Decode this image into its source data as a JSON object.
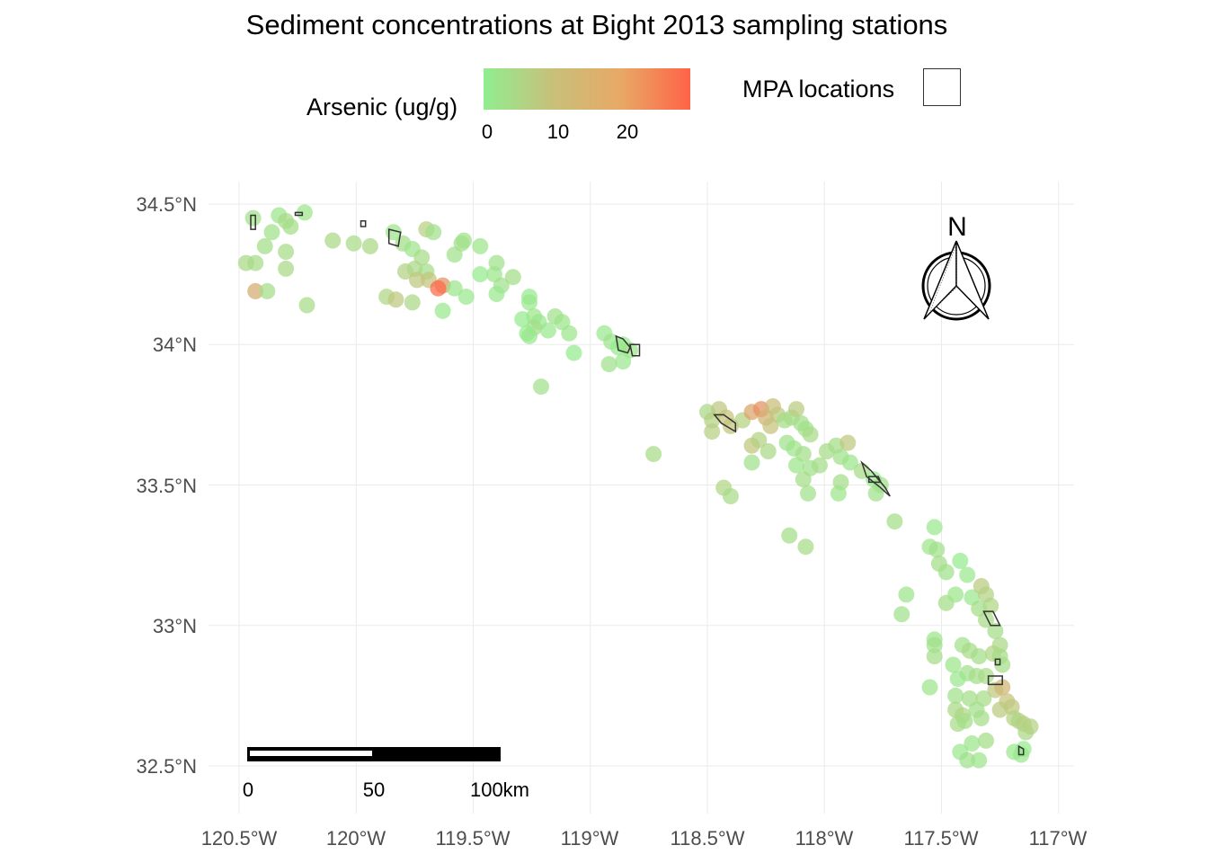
{
  "title": "Sediment concentrations at Bight 2013 sampling stations",
  "legend": {
    "arsenic_label": "Arsenic (ug/g)",
    "colorbar_ticks": [
      "0",
      "10",
      "20"
    ],
    "colorbar_min": 0,
    "colorbar_max": 29,
    "colors": [
      "#90ee90",
      "#ff6347"
    ],
    "mpa_label": "MPA locations"
  },
  "axes": {
    "x_ticks": [
      "120.5°W",
      "120°W",
      "119.5°W",
      "119°W",
      "118.5°W",
      "118°W",
      "117.5°W",
      "117°W"
    ],
    "y_ticks": [
      "34.5°N",
      "34°N",
      "33.5°N",
      "33°N",
      "32.5°N"
    ]
  },
  "north_arrow": {
    "label": "N"
  },
  "scale_bar": {
    "labels": [
      "0",
      "50",
      "100km"
    ]
  },
  "chart_data": {
    "type": "scatter",
    "title": "Sediment concentrations at Bight 2013 sampling stations",
    "xlim": [
      -120.5,
      -117.0
    ],
    "ylim": [
      32.5,
      34.5
    ],
    "x_unit": "longitude",
    "y_unit": "latitude",
    "color_variable": "Arsenic (ug/g)",
    "stations": [
      {
        "lon": -120.44,
        "lat": 34.45,
        "as": 4
      },
      {
        "lon": -120.33,
        "lat": 34.46,
        "as": 3
      },
      {
        "lon": -120.3,
        "lat": 34.44,
        "as": 6
      },
      {
        "lon": -120.28,
        "lat": 34.42,
        "as": 5
      },
      {
        "lon": -120.22,
        "lat": 34.47,
        "as": 3
      },
      {
        "lon": -120.36,
        "lat": 34.4,
        "as": 4
      },
      {
        "lon": -120.39,
        "lat": 34.35,
        "as": 5
      },
      {
        "lon": -120.3,
        "lat": 34.33,
        "as": 6
      },
      {
        "lon": -120.47,
        "lat": 34.29,
        "as": 7
      },
      {
        "lon": -120.43,
        "lat": 34.29,
        "as": 6
      },
      {
        "lon": -120.3,
        "lat": 34.27,
        "as": 7
      },
      {
        "lon": -120.43,
        "lat": 34.19,
        "as": 18
      },
      {
        "lon": -120.38,
        "lat": 34.19,
        "as": 5
      },
      {
        "lon": -120.21,
        "lat": 34.14,
        "as": 6
      },
      {
        "lon": -120.1,
        "lat": 34.37,
        "as": 7
      },
      {
        "lon": -120.01,
        "lat": 34.36,
        "as": 6
      },
      {
        "lon": -119.94,
        "lat": 34.35,
        "as": 7
      },
      {
        "lon": -119.84,
        "lat": 34.4,
        "as": 3
      },
      {
        "lon": -119.7,
        "lat": 34.41,
        "as": 10
      },
      {
        "lon": -119.67,
        "lat": 34.4,
        "as": 4
      },
      {
        "lon": -119.8,
        "lat": 34.36,
        "as": 5
      },
      {
        "lon": -119.76,
        "lat": 34.34,
        "as": 3
      },
      {
        "lon": -119.72,
        "lat": 34.31,
        "as": 6
      },
      {
        "lon": -119.79,
        "lat": 34.26,
        "as": 9
      },
      {
        "lon": -119.75,
        "lat": 34.27,
        "as": 7
      },
      {
        "lon": -119.7,
        "lat": 34.26,
        "as": 5
      },
      {
        "lon": -119.74,
        "lat": 34.23,
        "as": 12
      },
      {
        "lon": -119.69,
        "lat": 34.23,
        "as": 13
      },
      {
        "lon": -119.63,
        "lat": 34.21,
        "as": 22
      },
      {
        "lon": -119.65,
        "lat": 34.2,
        "as": 28
      },
      {
        "lon": -119.87,
        "lat": 34.17,
        "as": 8
      },
      {
        "lon": -119.83,
        "lat": 34.16,
        "as": 12
      },
      {
        "lon": -119.76,
        "lat": 34.15,
        "as": 7
      },
      {
        "lon": -119.63,
        "lat": 34.12,
        "as": 2
      },
      {
        "lon": -119.58,
        "lat": 34.2,
        "as": 3
      },
      {
        "lon": -119.58,
        "lat": 34.32,
        "as": 4
      },
      {
        "lon": -119.55,
        "lat": 34.36,
        "as": 5
      },
      {
        "lon": -119.54,
        "lat": 34.37,
        "as": 4
      },
      {
        "lon": -119.47,
        "lat": 34.35,
        "as": 3
      },
      {
        "lon": -119.47,
        "lat": 34.25,
        "as": 1
      },
      {
        "lon": -119.53,
        "lat": 34.17,
        "as": 2
      },
      {
        "lon": -119.4,
        "lat": 34.29,
        "as": 4
      },
      {
        "lon": -119.41,
        "lat": 34.25,
        "as": 3
      },
      {
        "lon": -119.33,
        "lat": 34.24,
        "as": 5
      },
      {
        "lon": -119.38,
        "lat": 34.21,
        "as": 4
      },
      {
        "lon": -119.4,
        "lat": 34.18,
        "as": 2
      },
      {
        "lon": -119.26,
        "lat": 34.17,
        "as": 1
      },
      {
        "lon": -119.26,
        "lat": 34.15,
        "as": 2
      },
      {
        "lon": -119.24,
        "lat": 34.1,
        "as": 3
      },
      {
        "lon": -119.29,
        "lat": 34.09,
        "as": 1
      },
      {
        "lon": -119.22,
        "lat": 34.08,
        "as": 2
      },
      {
        "lon": -119.15,
        "lat": 34.1,
        "as": 4
      },
      {
        "lon": -119.12,
        "lat": 34.08,
        "as": 3
      },
      {
        "lon": -119.24,
        "lat": 34.06,
        "as": 5
      },
      {
        "lon": -119.18,
        "lat": 34.05,
        "as": 2
      },
      {
        "lon": -119.09,
        "lat": 34.04,
        "as": 3
      },
      {
        "lon": -119.27,
        "lat": 34.04,
        "as": 1
      },
      {
        "lon": -119.26,
        "lat": 34.03,
        "as": 2
      },
      {
        "lon": -119.07,
        "lat": 33.97,
        "as": 1
      },
      {
        "lon": -119.21,
        "lat": 33.85,
        "as": 4
      },
      {
        "lon": -118.94,
        "lat": 34.04,
        "as": 2
      },
      {
        "lon": -118.91,
        "lat": 34.01,
        "as": 3
      },
      {
        "lon": -118.88,
        "lat": 33.99,
        "as": 1
      },
      {
        "lon": -118.86,
        "lat": 34.0,
        "as": 2
      },
      {
        "lon": -118.83,
        "lat": 33.98,
        "as": 3
      },
      {
        "lon": -118.92,
        "lat": 33.93,
        "as": 4
      },
      {
        "lon": -118.86,
        "lat": 33.94,
        "as": 2
      },
      {
        "lon": -118.73,
        "lat": 33.61,
        "as": 6
      },
      {
        "lon": -118.5,
        "lat": 33.76,
        "as": 7
      },
      {
        "lon": -118.48,
        "lat": 33.73,
        "as": 9
      },
      {
        "lon": -118.45,
        "lat": 33.77,
        "as": 12
      },
      {
        "lon": -118.42,
        "lat": 33.74,
        "as": 14
      },
      {
        "lon": -118.4,
        "lat": 33.71,
        "as": 13
      },
      {
        "lon": -118.48,
        "lat": 33.69,
        "as": 10
      },
      {
        "lon": -118.35,
        "lat": 33.73,
        "as": 9
      },
      {
        "lon": -118.31,
        "lat": 33.76,
        "as": 19
      },
      {
        "lon": -118.27,
        "lat": 33.77,
        "as": 22
      },
      {
        "lon": -118.25,
        "lat": 33.74,
        "as": 17
      },
      {
        "lon": -118.22,
        "lat": 33.78,
        "as": 15
      },
      {
        "lon": -118.2,
        "lat": 33.75,
        "as": 12
      },
      {
        "lon": -118.23,
        "lat": 33.71,
        "as": 14
      },
      {
        "lon": -118.17,
        "lat": 33.73,
        "as": 5
      },
      {
        "lon": -118.14,
        "lat": 33.74,
        "as": 6
      },
      {
        "lon": -118.12,
        "lat": 33.77,
        "as": 11
      },
      {
        "lon": -118.1,
        "lat": 33.72,
        "as": 5
      },
      {
        "lon": -118.08,
        "lat": 33.7,
        "as": 4
      },
      {
        "lon": -118.06,
        "lat": 33.68,
        "as": 6
      },
      {
        "lon": -118.31,
        "lat": 33.64,
        "as": 13
      },
      {
        "lon": -118.28,
        "lat": 33.66,
        "as": 9
      },
      {
        "lon": -118.24,
        "lat": 33.62,
        "as": 7
      },
      {
        "lon": -118.16,
        "lat": 33.65,
        "as": 4
      },
      {
        "lon": -118.13,
        "lat": 33.63,
        "as": 3
      },
      {
        "lon": -118.09,
        "lat": 33.61,
        "as": 5
      },
      {
        "lon": -118.31,
        "lat": 33.58,
        "as": 4
      },
      {
        "lon": -118.12,
        "lat": 33.57,
        "as": 3
      },
      {
        "lon": -118.06,
        "lat": 33.56,
        "as": 4
      },
      {
        "lon": -118.02,
        "lat": 33.57,
        "as": 5
      },
      {
        "lon": -117.99,
        "lat": 33.62,
        "as": 6
      },
      {
        "lon": -117.95,
        "lat": 33.64,
        "as": 5
      },
      {
        "lon": -117.9,
        "lat": 33.65,
        "as": 12
      },
      {
        "lon": -117.93,
        "lat": 33.6,
        "as": 4
      },
      {
        "lon": -117.89,
        "lat": 33.58,
        "as": 3
      },
      {
        "lon": -117.84,
        "lat": 33.55,
        "as": 6
      },
      {
        "lon": -117.79,
        "lat": 33.52,
        "as": 2
      },
      {
        "lon": -117.76,
        "lat": 33.5,
        "as": 4
      },
      {
        "lon": -118.09,
        "lat": 33.52,
        "as": 5
      },
      {
        "lon": -118.07,
        "lat": 33.47,
        "as": 4
      },
      {
        "lon": -117.93,
        "lat": 33.51,
        "as": 5
      },
      {
        "lon": -117.94,
        "lat": 33.47,
        "as": 3
      },
      {
        "lon": -117.78,
        "lat": 33.47,
        "as": 4
      },
      {
        "lon": -118.43,
        "lat": 33.49,
        "as": 8
      },
      {
        "lon": -118.4,
        "lat": 33.46,
        "as": 6
      },
      {
        "lon": -118.15,
        "lat": 33.32,
        "as": 5
      },
      {
        "lon": -118.08,
        "lat": 33.28,
        "as": 6
      },
      {
        "lon": -117.7,
        "lat": 33.37,
        "as": 5
      },
      {
        "lon": -117.53,
        "lat": 33.35,
        "as": 2
      },
      {
        "lon": -117.55,
        "lat": 33.28,
        "as": 3
      },
      {
        "lon": -117.52,
        "lat": 33.27,
        "as": 4
      },
      {
        "lon": -117.51,
        "lat": 33.22,
        "as": 5
      },
      {
        "lon": -117.48,
        "lat": 33.19,
        "as": 4
      },
      {
        "lon": -117.42,
        "lat": 33.23,
        "as": 1
      },
      {
        "lon": -117.39,
        "lat": 33.18,
        "as": 2
      },
      {
        "lon": -117.65,
        "lat": 33.11,
        "as": 3
      },
      {
        "lon": -117.67,
        "lat": 33.04,
        "as": 4
      },
      {
        "lon": -117.48,
        "lat": 33.08,
        "as": 5
      },
      {
        "lon": -117.44,
        "lat": 33.11,
        "as": 3
      },
      {
        "lon": -117.37,
        "lat": 33.1,
        "as": 2
      },
      {
        "lon": -117.33,
        "lat": 33.14,
        "as": 11
      },
      {
        "lon": -117.31,
        "lat": 33.11,
        "as": 9
      },
      {
        "lon": -117.29,
        "lat": 33.07,
        "as": 8
      },
      {
        "lon": -117.34,
        "lat": 33.06,
        "as": 5
      },
      {
        "lon": -117.31,
        "lat": 33.02,
        "as": 6
      },
      {
        "lon": -117.27,
        "lat": 32.98,
        "as": 5
      },
      {
        "lon": -117.25,
        "lat": 32.93,
        "as": 7
      },
      {
        "lon": -117.28,
        "lat": 32.9,
        "as": 8
      },
      {
        "lon": -117.25,
        "lat": 32.89,
        "as": 6
      },
      {
        "lon": -117.24,
        "lat": 32.86,
        "as": 5
      },
      {
        "lon": -117.53,
        "lat": 32.95,
        "as": 3
      },
      {
        "lon": -117.53,
        "lat": 32.93,
        "as": 4
      },
      {
        "lon": -117.53,
        "lat": 32.89,
        "as": 5
      },
      {
        "lon": -117.41,
        "lat": 32.93,
        "as": 4
      },
      {
        "lon": -117.38,
        "lat": 32.91,
        "as": 6
      },
      {
        "lon": -117.34,
        "lat": 32.89,
        "as": 5
      },
      {
        "lon": -117.45,
        "lat": 32.86,
        "as": 3
      },
      {
        "lon": -117.39,
        "lat": 32.83,
        "as": 4
      },
      {
        "lon": -117.43,
        "lat": 32.81,
        "as": 2
      },
      {
        "lon": -117.35,
        "lat": 32.82,
        "as": 5
      },
      {
        "lon": -117.31,
        "lat": 32.82,
        "as": 6
      },
      {
        "lon": -117.55,
        "lat": 32.78,
        "as": 3
      },
      {
        "lon": -117.44,
        "lat": 32.75,
        "as": 4
      },
      {
        "lon": -117.38,
        "lat": 32.74,
        "as": 5
      },
      {
        "lon": -117.32,
        "lat": 32.74,
        "as": 6
      },
      {
        "lon": -117.27,
        "lat": 32.77,
        "as": 12
      },
      {
        "lon": -117.24,
        "lat": 32.78,
        "as": 16
      },
      {
        "lon": -117.22,
        "lat": 32.73,
        "as": 14
      },
      {
        "lon": -117.2,
        "lat": 32.71,
        "as": 12
      },
      {
        "lon": -117.25,
        "lat": 32.7,
        "as": 11
      },
      {
        "lon": -117.44,
        "lat": 32.7,
        "as": 7
      },
      {
        "lon": -117.41,
        "lat": 32.68,
        "as": 8
      },
      {
        "lon": -117.43,
        "lat": 32.65,
        "as": 6
      },
      {
        "lon": -117.4,
        "lat": 32.66,
        "as": 5
      },
      {
        "lon": -117.35,
        "lat": 32.7,
        "as": 4
      },
      {
        "lon": -117.33,
        "lat": 32.67,
        "as": 5
      },
      {
        "lon": -117.19,
        "lat": 32.67,
        "as": 9
      },
      {
        "lon": -117.17,
        "lat": 32.66,
        "as": 8
      },
      {
        "lon": -117.15,
        "lat": 32.65,
        "as": 10
      },
      {
        "lon": -117.14,
        "lat": 32.62,
        "as": 7
      },
      {
        "lon": -117.12,
        "lat": 32.64,
        "as": 9
      },
      {
        "lon": -117.31,
        "lat": 32.59,
        "as": 5
      },
      {
        "lon": -117.37,
        "lat": 32.58,
        "as": 3
      },
      {
        "lon": -117.42,
        "lat": 32.55,
        "as": 2
      },
      {
        "lon": -117.39,
        "lat": 32.52,
        "as": 4
      },
      {
        "lon": -117.34,
        "lat": 32.52,
        "as": 3
      },
      {
        "lon": -117.19,
        "lat": 32.55,
        "as": 2
      },
      {
        "lon": -117.15,
        "lat": 32.56,
        "as": 1
      },
      {
        "lon": -117.16,
        "lat": 32.54,
        "as": 2
      }
    ],
    "mpas": [
      [
        [
          -120.45,
          34.46
        ],
        [
          -120.43,
          34.46
        ],
        [
          -120.43,
          34.41
        ],
        [
          -120.45,
          34.41
        ]
      ],
      [
        [
          -120.26,
          34.47
        ],
        [
          -120.23,
          34.47
        ],
        [
          -120.23,
          34.46
        ],
        [
          -120.26,
          34.46
        ]
      ],
      [
        [
          -119.98,
          34.44
        ],
        [
          -119.96,
          34.44
        ],
        [
          -119.96,
          34.42
        ],
        [
          -119.98,
          34.42
        ]
      ],
      [
        [
          -119.86,
          34.41
        ],
        [
          -119.81,
          34.4
        ],
        [
          -119.82,
          34.35
        ],
        [
          -119.86,
          34.36
        ]
      ],
      [
        [
          -118.89,
          34.03
        ],
        [
          -118.86,
          34.02
        ],
        [
          -118.83,
          33.99
        ],
        [
          -118.84,
          33.97
        ],
        [
          -118.88,
          33.98
        ]
      ],
      [
        [
          -118.83,
          34.0
        ],
        [
          -118.79,
          34.0
        ],
        [
          -118.79,
          33.96
        ],
        [
          -118.82,
          33.96
        ]
      ],
      [
        [
          -118.47,
          33.75
        ],
        [
          -118.43,
          33.75
        ],
        [
          -118.38,
          33.72
        ],
        [
          -118.38,
          33.69
        ],
        [
          -118.44,
          33.72
        ]
      ],
      [
        [
          -117.84,
          33.58
        ],
        [
          -117.8,
          33.55
        ],
        [
          -117.74,
          33.49
        ],
        [
          -117.72,
          33.46
        ],
        [
          -117.76,
          33.49
        ],
        [
          -117.82,
          33.53
        ]
      ],
      [
        [
          -117.81,
          33.53
        ],
        [
          -117.77,
          33.53
        ],
        [
          -117.76,
          33.51
        ],
        [
          -117.81,
          33.51
        ]
      ],
      [
        [
          -117.32,
          33.05
        ],
        [
          -117.28,
          33.05
        ],
        [
          -117.25,
          33.0
        ],
        [
          -117.29,
          33.0
        ]
      ],
      [
        [
          -117.27,
          32.88
        ],
        [
          -117.25,
          32.88
        ],
        [
          -117.25,
          32.86
        ],
        [
          -117.27,
          32.86
        ]
      ],
      [
        [
          -117.3,
          32.82
        ],
        [
          -117.24,
          32.82
        ],
        [
          -117.24,
          32.79
        ],
        [
          -117.3,
          32.79
        ]
      ],
      [
        [
          -117.17,
          32.57
        ],
        [
          -117.15,
          32.56
        ],
        [
          -117.15,
          32.54
        ],
        [
          -117.17,
          32.54
        ]
      ]
    ]
  }
}
